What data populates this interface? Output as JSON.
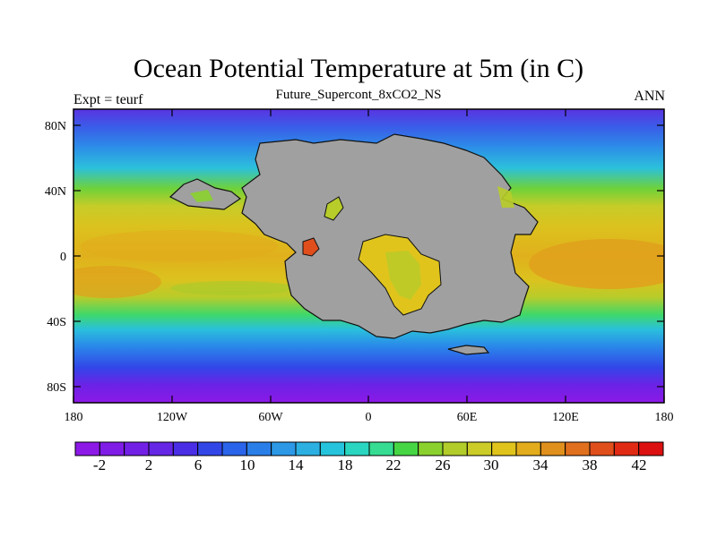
{
  "title": "Ocean Potential Temperature at 5m (in C)",
  "subtitle": "Future_Supercont_8xCO2_NS",
  "left_label": "Expt = teurf",
  "right_label": "ANN",
  "axes": {
    "y_ticks": [
      "80N",
      "40N",
      "0",
      "40S",
      "80S"
    ],
    "x_ticks": [
      "180",
      "120W",
      "60W",
      "0",
      "60E",
      "120E",
      "180"
    ]
  },
  "colorbar": {
    "labels": [
      "-2",
      "2",
      "6",
      "10",
      "14",
      "18",
      "22",
      "26",
      "30",
      "34",
      "38",
      "42"
    ],
    "colors": [
      "#8c19e6",
      "#7f1ce6",
      "#7320e6",
      "#6626e6",
      "#4a2ee6",
      "#3246e8",
      "#2a64ea",
      "#2a7ee8",
      "#2c98e6",
      "#2cb0e2",
      "#26c4dc",
      "#2ad6c0",
      "#36dc92",
      "#46d644",
      "#8ad12e",
      "#b2cc2a",
      "#cccc28",
      "#e0c41c",
      "#e2ac1c",
      "#e0901c",
      "#e0701e",
      "#e04e1c",
      "#e02a14",
      "#dc1010"
    ]
  },
  "map": {
    "land_color": "#a0a0a0",
    "ocean_gradient_by_latitude": [
      {
        "lat": 90,
        "temp": 4
      },
      {
        "lat": 80,
        "temp": 7
      },
      {
        "lat": 70,
        "temp": 12
      },
      {
        "lat": 55,
        "temp": 20
      },
      {
        "lat": 40,
        "temp": 27
      },
      {
        "lat": 20,
        "temp": 31
      },
      {
        "lat": 0,
        "temp": 32
      },
      {
        "lat": -20,
        "temp": 31
      },
      {
        "lat": -35,
        "temp": 27
      },
      {
        "lat": -50,
        "temp": 21
      },
      {
        "lat": -65,
        "temp": 12
      },
      {
        "lat": -75,
        "temp": 6
      },
      {
        "lat": -90,
        "temp": 2
      }
    ]
  }
}
